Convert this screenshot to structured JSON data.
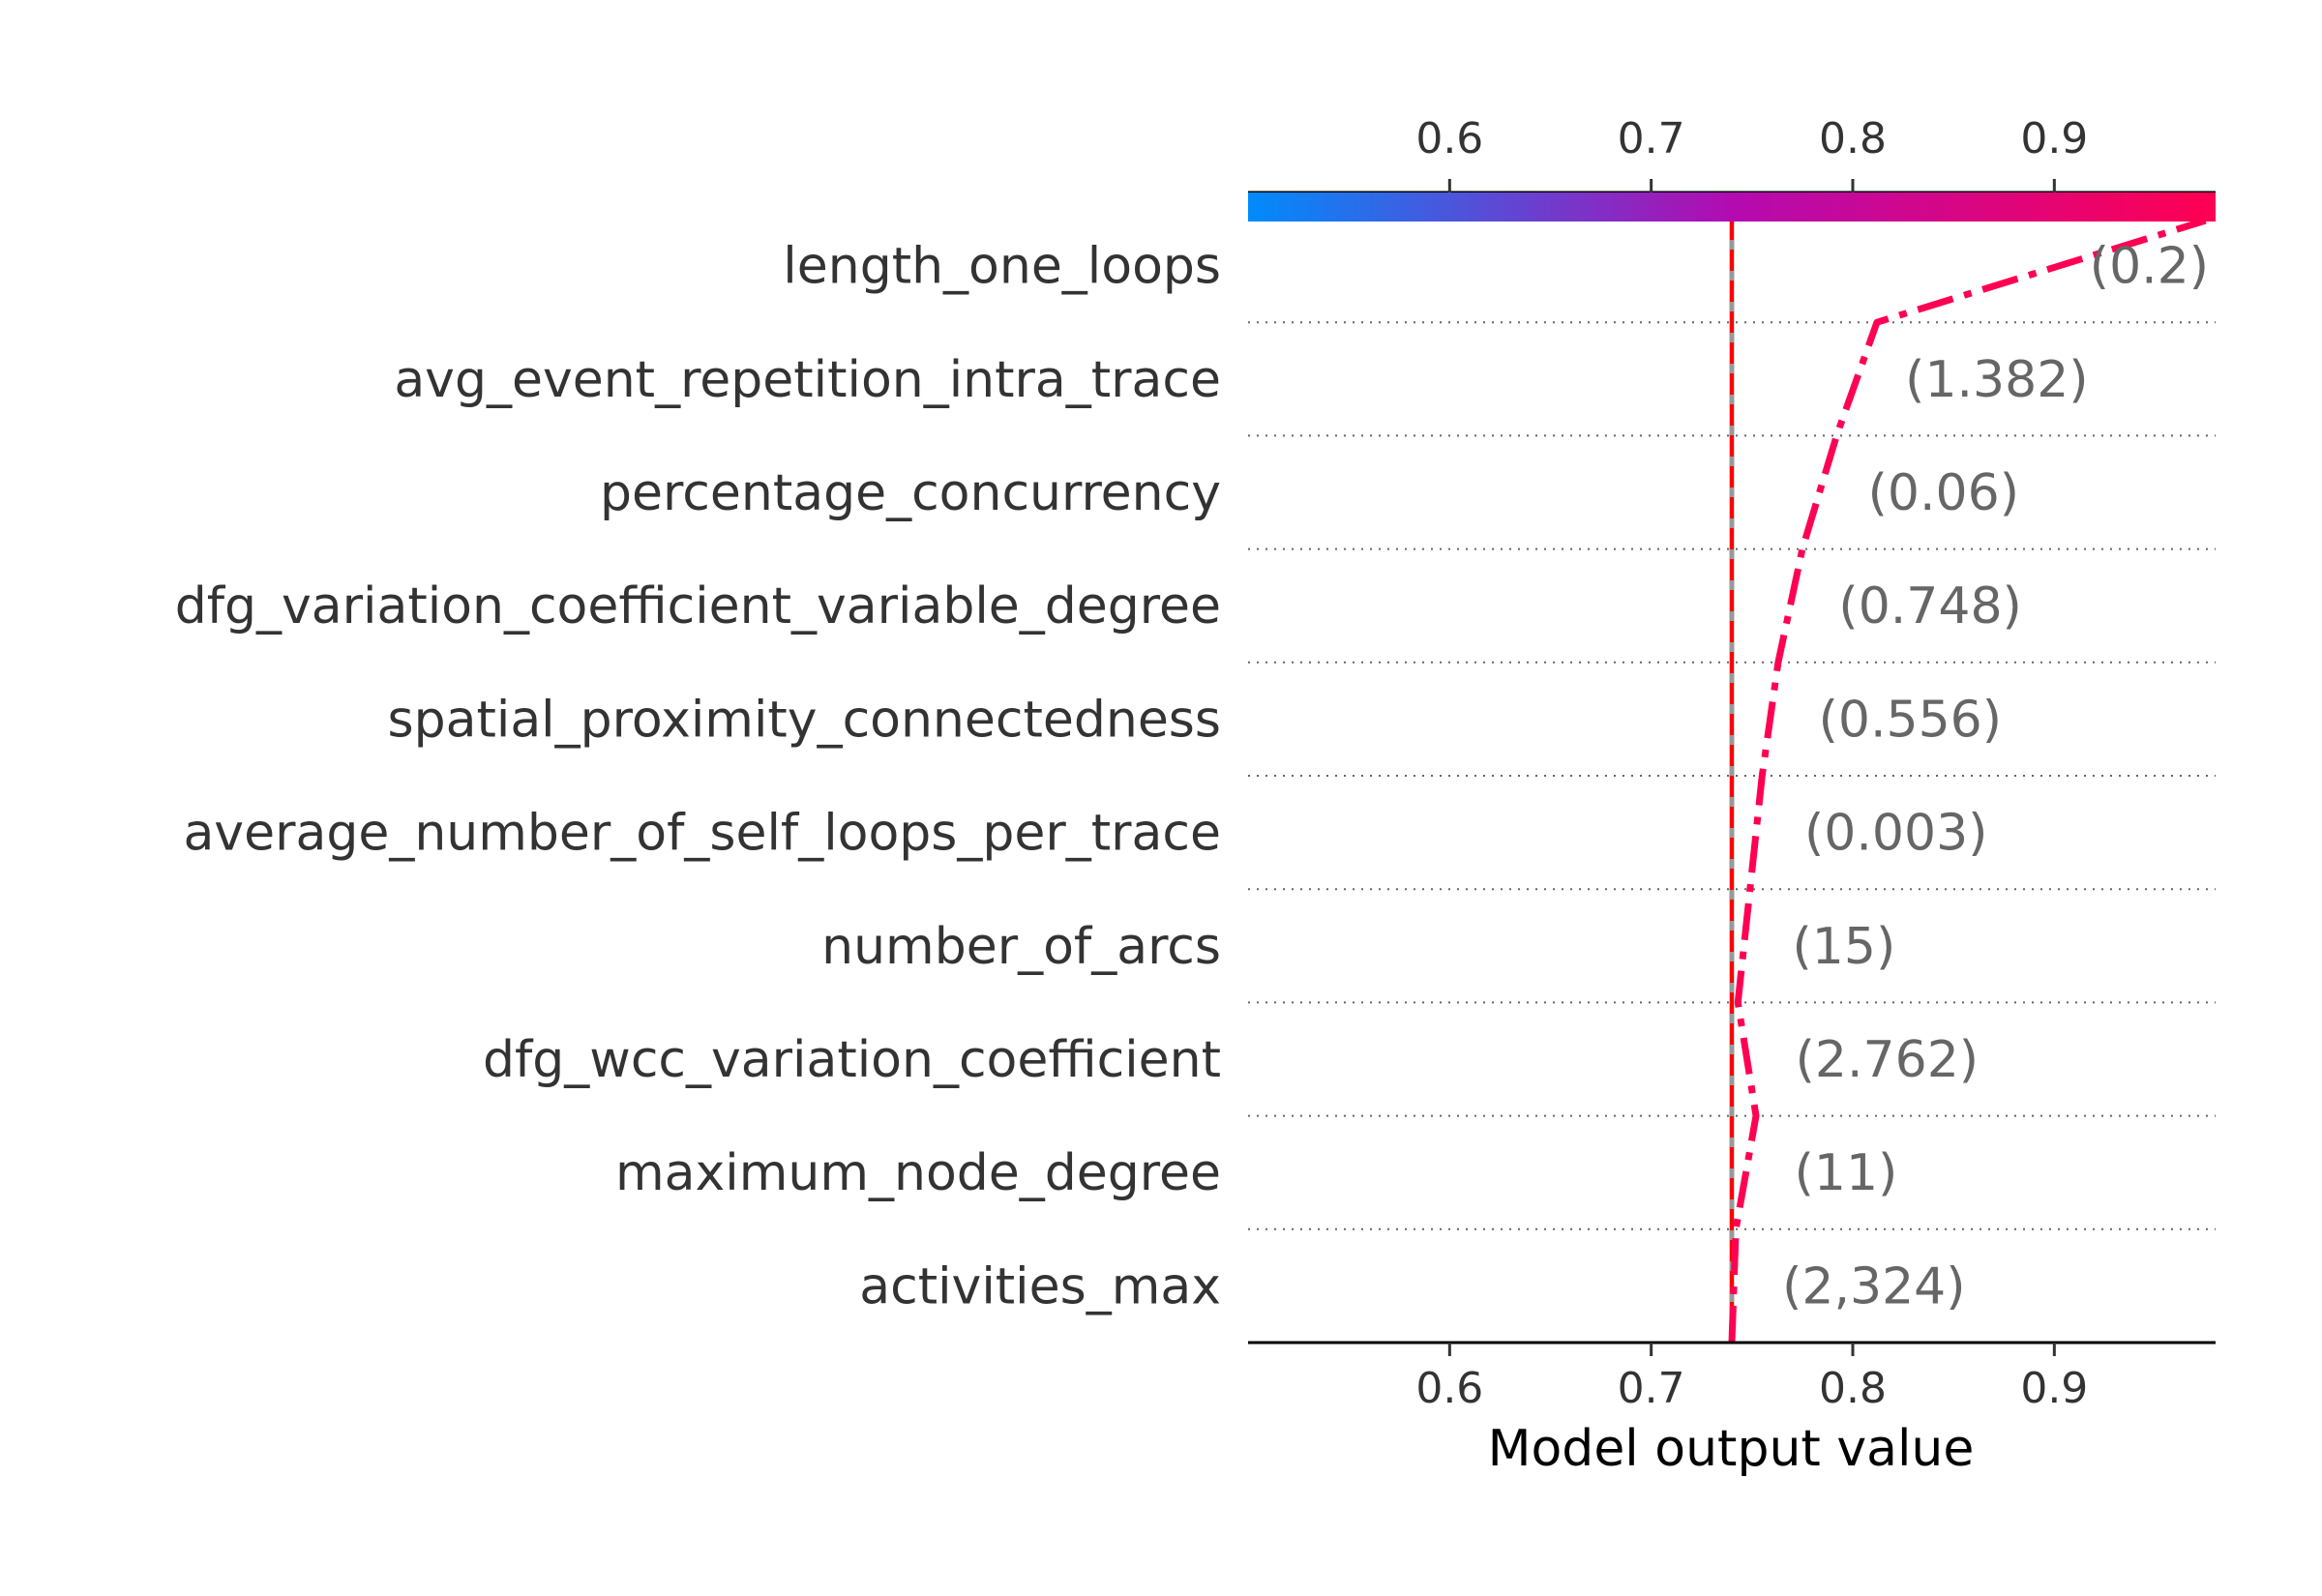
{
  "chart_data": {
    "type": "line",
    "title": "",
    "xlabel": "Model output value",
    "xlim": [
      0.5,
      0.98
    ],
    "xticks": [
      0.6,
      0.7,
      0.8,
      0.9
    ],
    "xtick_labels": [
      "0.6",
      "0.7",
      "0.8",
      "0.9"
    ],
    "base_value": 0.74,
    "colors": {
      "colorbar_start": "#008bfb",
      "colorbar_mid": "#b30bb0",
      "colorbar_end": "#ff0052",
      "decision_line": "#ff0052",
      "base_line": "#ff0000",
      "text": "#333333",
      "value_label": "#666666"
    },
    "features": [
      {
        "name": "length_one_loops",
        "value_label": "(0.2)"
      },
      {
        "name": "avg_event_repetition_intra_trace",
        "value_label": "(1.382)"
      },
      {
        "name": "percentage_concurrency",
        "value_label": "(0.06)"
      },
      {
        "name": "dfg_variation_coefficient_variable_degree",
        "value_label": "(0.748)"
      },
      {
        "name": "spatial_proximity_connectedness",
        "value_label": "(0.556)"
      },
      {
        "name": "average_number_of_self_loops_per_trace",
        "value_label": "(0.003)"
      },
      {
        "name": "number_of_arcs",
        "value_label": "(15)"
      },
      {
        "name": "dfg_wcc_variation_coefficient",
        "value_label": "(2.762)"
      },
      {
        "name": "maximum_node_degree",
        "value_label": "(11)"
      },
      {
        "name": "activities_max",
        "value_label": "(2,324)"
      }
    ],
    "decision_path": [
      0.74,
      0.742,
      0.752,
      0.743,
      0.749,
      0.755,
      0.763,
      0.775,
      0.792,
      0.812,
      0.975
    ]
  }
}
